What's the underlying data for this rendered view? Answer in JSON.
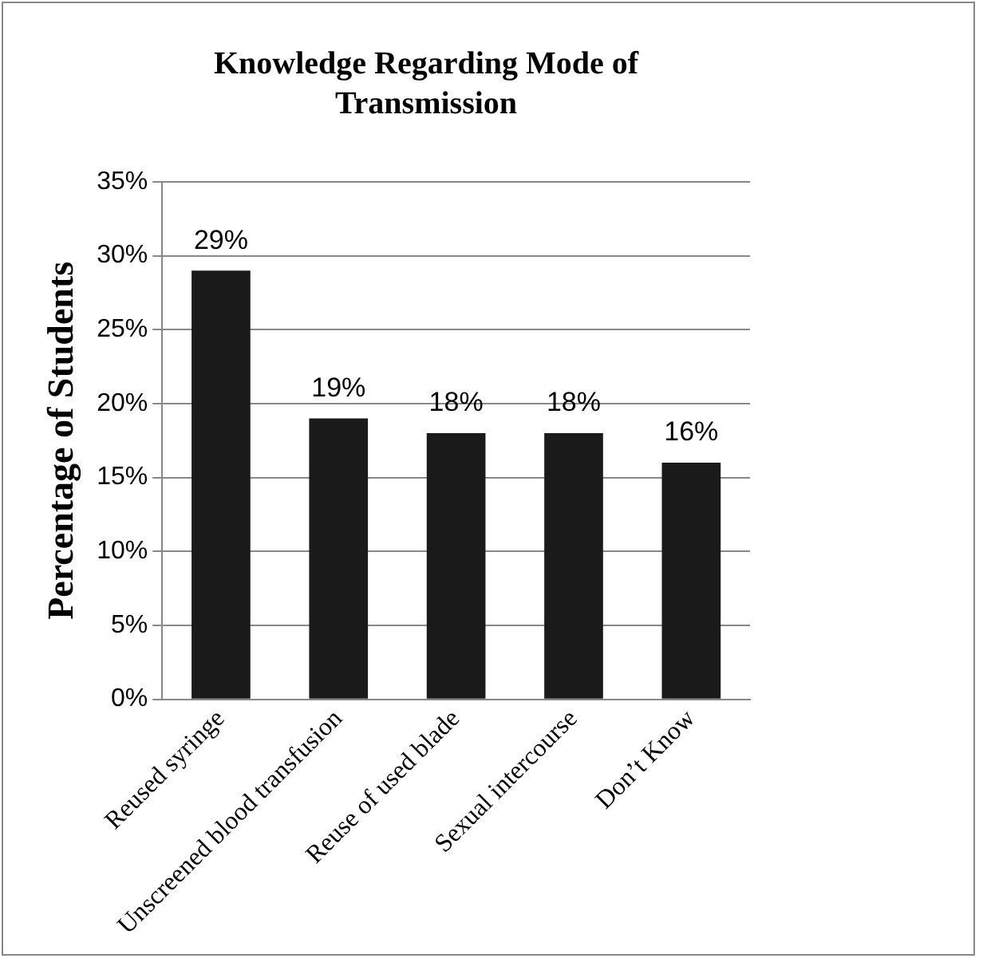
{
  "chart_data": {
    "type": "bar",
    "title": "Knowledge Regarding Mode of Transmission",
    "ylabel": "Percentage of Students",
    "categories": [
      "Reused syringe",
      "Unscreened blood transfusion",
      "Reuse of used blade",
      "Sexual intercourse",
      "Don’t Know"
    ],
    "values": [
      29,
      19,
      18,
      18,
      16
    ],
    "color": "#1a1a1a",
    "value_labels": [
      "29%",
      "19%",
      "18%",
      "18%",
      "16%"
    ],
    "ylim": [
      0,
      35
    ],
    "yticks": [
      {
        "value": 0,
        "label": "0%"
      },
      {
        "value": 5,
        "label": "5%"
      },
      {
        "value": 10,
        "label": "10%"
      },
      {
        "value": 15,
        "label": "15%"
      },
      {
        "value": 20,
        "label": "20%"
      },
      {
        "value": 25,
        "label": "25%"
      },
      {
        "value": 30,
        "label": "30%"
      },
      {
        "value": 35,
        "label": "35%"
      }
    ],
    "grid": "y",
    "legend": false
  }
}
